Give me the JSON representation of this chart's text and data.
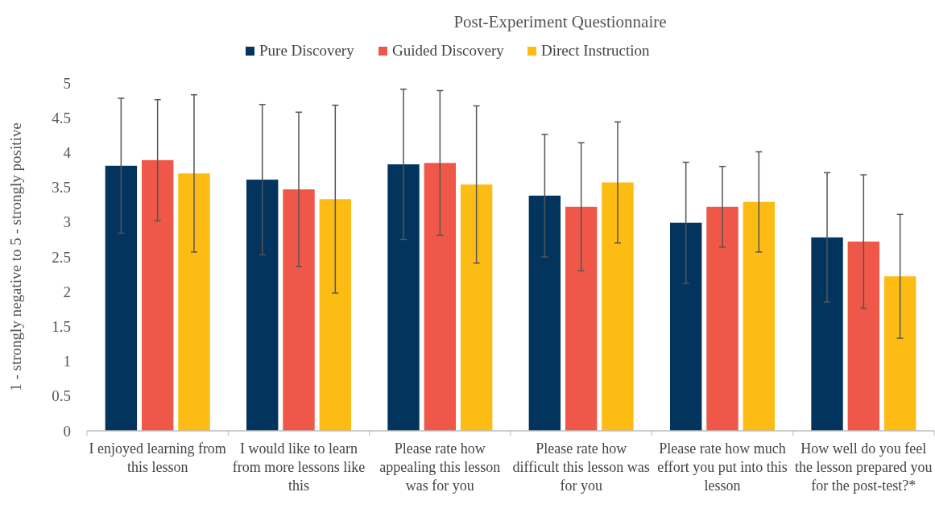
{
  "chart_data": {
    "type": "bar",
    "title": "Post-Experiment  Questionnaire",
    "ylabel": "1 - strongly negative to 5 - strongly positive",
    "categories": [
      "I enjoyed learning from this lesson",
      "I would like to learn from more lessons like this",
      "Please rate how appealing this lesson was for you",
      "Please rate how difficult this lesson was for you",
      "Please rate how much effort you put into this lesson",
      "How well do you feel the lesson prepared you for the post-test?*"
    ],
    "series": [
      {
        "name": "Pure Discovery",
        "color": "#03345e",
        "values": [
          3.81,
          3.61,
          3.83,
          3.38,
          2.99,
          2.78
        ],
        "errors": [
          0.97,
          1.08,
          1.08,
          0.88,
          0.87,
          0.93
        ]
      },
      {
        "name": "Guided Discovery",
        "color": "#ef5848",
        "values": [
          3.89,
          3.47,
          3.85,
          3.22,
          3.22,
          2.72
        ],
        "errors": [
          0.87,
          1.11,
          1.04,
          0.92,
          0.58,
          0.96
        ]
      },
      {
        "name": "Direct Instruction",
        "color": "#fdbc13",
        "values": [
          3.7,
          3.33,
          3.54,
          3.57,
          3.29,
          2.22
        ],
        "errors": [
          1.13,
          1.35,
          1.13,
          0.87,
          0.72,
          0.89
        ]
      }
    ],
    "ylim": [
      0,
      5
    ],
    "yticks": [
      0,
      0.5,
      1,
      1.5,
      2,
      2.5,
      3,
      3.5,
      4,
      4.5,
      5
    ],
    "grid": false,
    "legend": "top"
  }
}
